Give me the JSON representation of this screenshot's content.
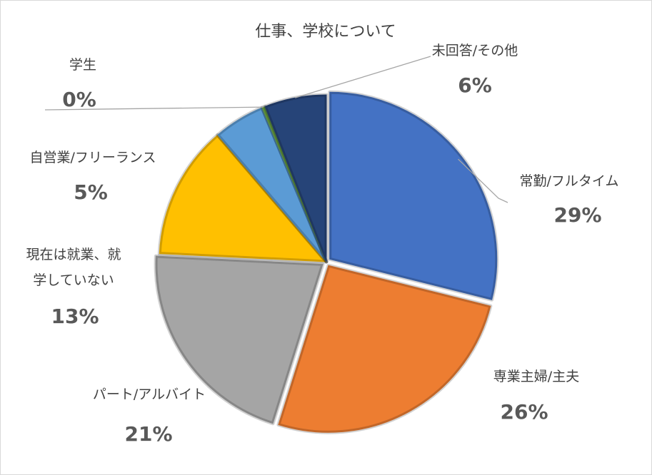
{
  "chart_data": {
    "type": "pie",
    "title": "仕事、学校について",
    "slices": [
      {
        "label": "常勤/フルタイム",
        "value": 29,
        "value_label": "29%",
        "color": "#4472c4"
      },
      {
        "label": "専業主婦/主夫",
        "value": 26,
        "value_label": "26%",
        "color": "#ed7d31"
      },
      {
        "label": "パート/アルバイト",
        "value": 21,
        "value_label": "21%",
        "color": "#a5a5a5"
      },
      {
        "label_lines": [
          "現在は就業、就",
          "学していない"
        ],
        "value": 13,
        "value_label": "13%",
        "color": "#ffc000"
      },
      {
        "label": "自営業/フリーランス",
        "value": 5,
        "value_label": "5%",
        "color": "#5b9bd5"
      },
      {
        "label": "学生",
        "value": 0.3,
        "value_label": "0%",
        "color": "#70ad47"
      },
      {
        "label": "未回答/その他",
        "value": 6,
        "value_label": "6%",
        "color": "#264478"
      }
    ],
    "start_angle": "12 o'clock",
    "direction": "clockwise",
    "legend": "none"
  }
}
